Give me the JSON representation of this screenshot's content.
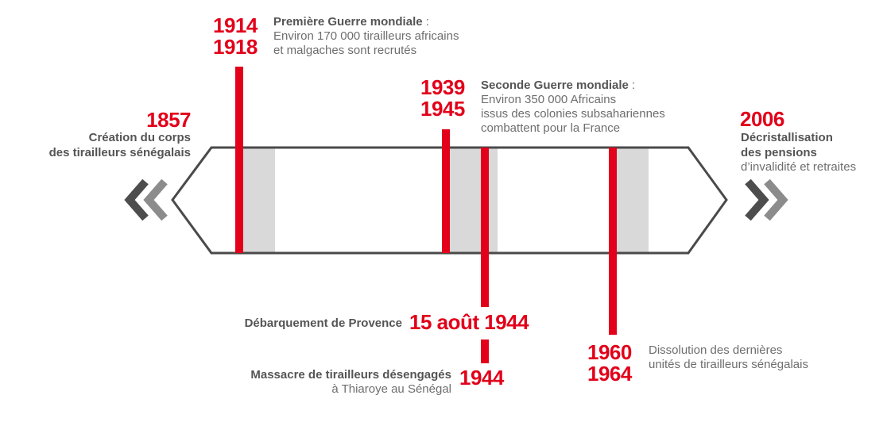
{
  "colors": {
    "accent_red": "#e2001a",
    "band_grey": "#d9d9d9",
    "outline": "#4a4a4a",
    "text_dark": "#555555",
    "text_light": "#6e6e6e",
    "chevron_dark": "#4d4d4d",
    "chevron_light": "#8c8c8c"
  },
  "icons": {
    "left": "double-chevron-left-icon",
    "right": "double-chevron-right-icon"
  },
  "events": {
    "e1857": {
      "year": "1857",
      "title_line1": "Création du corps",
      "title_line2": "des tirailleurs sénégalais"
    },
    "ww1": {
      "year_start": "1914",
      "year_end": "1918",
      "title": "Première Guerre mondiale",
      "colon": " :",
      "line1": "Environ 170 000 tirailleurs africains",
      "line2": "et malgaches sont recrutés"
    },
    "ww2": {
      "year_start": "1939",
      "year_end": "1945",
      "title": "Seconde Guerre mondiale",
      "colon": " :",
      "line1": "Environ 350 000 Africains",
      "line2": "issus des colonies subsahariennes",
      "line3": "combattent pour la France"
    },
    "provence": {
      "label": "Débarquement de Provence",
      "date": "15 août 1944"
    },
    "thiaroye": {
      "label": "Massacre de tirailleurs désengagés",
      "sublabel": "à Thiaroye au Sénégal",
      "year": "1944"
    },
    "dissolution": {
      "year_start": "1960",
      "year_end": "1964",
      "line1": "Dissolution des dernières",
      "line2": "unités de tirailleurs sénégalais"
    },
    "e2006": {
      "year": "2006",
      "title_line1": "Décristallisation",
      "title_line2": "des pensions",
      "line3": "d’invalidité et retraites"
    }
  }
}
